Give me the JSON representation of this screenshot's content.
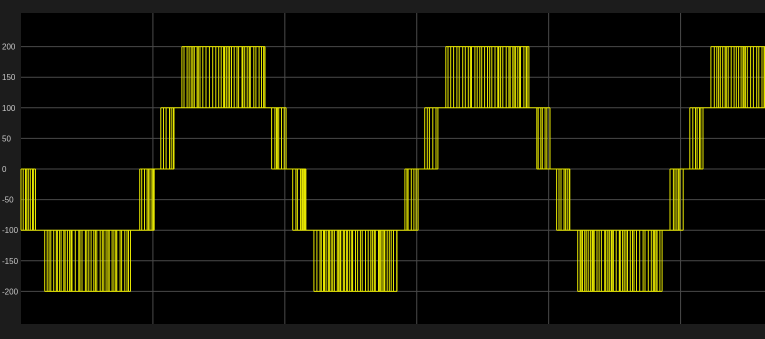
{
  "chart_data": {
    "type": "line",
    "title": "",
    "xlabel": "",
    "ylabel": "",
    "ylim": [
      -240,
      240
    ],
    "xlim": [
      0,
      5.64
    ],
    "grid": true,
    "yticks": [
      200,
      150,
      100,
      50,
      0,
      -50,
      -100,
      -150,
      -200
    ],
    "ytick_labels": [
      "200",
      "150",
      "100",
      "50",
      "0",
      "-50",
      "-100",
      "-150",
      "-200"
    ],
    "xtick_positions": [
      1,
      2,
      3,
      4,
      5
    ],
    "series": [
      {
        "color": "#e6e600",
        "description_of_shape": "PWM multilevel staircase voltage, levels 0, ±100, ±200",
        "segments": [
          {
            "x_start": 0.0,
            "x_end": 0.11,
            "low": -100,
            "high": 0
          },
          {
            "x_start": 0.11,
            "x_end": 0.18,
            "low": -100,
            "high": -100
          },
          {
            "x_start": 0.18,
            "x_end": 0.83,
            "low": -200,
            "high": -100
          },
          {
            "x_start": 0.83,
            "x_end": 0.9,
            "low": -100,
            "high": -100
          },
          {
            "x_start": 0.9,
            "x_end": 1.01,
            "low": -100,
            "high": 0
          },
          {
            "x_start": 1.01,
            "x_end": 1.06,
            "low": 0,
            "high": 0
          },
          {
            "x_start": 1.06,
            "x_end": 1.16,
            "low": 0,
            "high": 100
          },
          {
            "x_start": 1.16,
            "x_end": 1.22,
            "low": 100,
            "high": 100
          },
          {
            "x_start": 1.22,
            "x_end": 1.85,
            "low": 100,
            "high": 200
          },
          {
            "x_start": 1.85,
            "x_end": 1.9,
            "low": 100,
            "high": 100
          },
          {
            "x_start": 1.9,
            "x_end": 2.01,
            "low": 0,
            "high": 100
          },
          {
            "x_start": 2.01,
            "x_end": 2.06,
            "low": 0,
            "high": 0
          },
          {
            "x_start": 2.06,
            "x_end": 2.16,
            "low": -100,
            "high": 0
          },
          {
            "x_start": 2.16,
            "x_end": 2.22,
            "low": -100,
            "high": -100
          },
          {
            "x_start": 2.22,
            "x_end": 2.85,
            "low": -200,
            "high": -100
          },
          {
            "x_start": 2.85,
            "x_end": 2.91,
            "low": -100,
            "high": -100
          },
          {
            "x_start": 2.91,
            "x_end": 3.01,
            "low": -100,
            "high": 0
          },
          {
            "x_start": 3.01,
            "x_end": 3.06,
            "low": 0,
            "high": 0
          },
          {
            "x_start": 3.06,
            "x_end": 3.16,
            "low": 0,
            "high": 100
          },
          {
            "x_start": 3.16,
            "x_end": 3.22,
            "low": 100,
            "high": 100
          },
          {
            "x_start": 3.22,
            "x_end": 3.85,
            "low": 100,
            "high": 200
          },
          {
            "x_start": 3.85,
            "x_end": 3.91,
            "low": 100,
            "high": 100
          },
          {
            "x_start": 3.91,
            "x_end": 4.01,
            "low": 0,
            "high": 100
          },
          {
            "x_start": 4.01,
            "x_end": 4.06,
            "low": 0,
            "high": 0
          },
          {
            "x_start": 4.06,
            "x_end": 4.16,
            "low": -100,
            "high": 0
          },
          {
            "x_start": 4.16,
            "x_end": 4.22,
            "low": -100,
            "high": -100
          },
          {
            "x_start": 4.22,
            "x_end": 4.86,
            "low": -200,
            "high": -100
          },
          {
            "x_start": 4.86,
            "x_end": 4.92,
            "low": -100,
            "high": -100
          },
          {
            "x_start": 4.92,
            "x_end": 5.02,
            "low": -100,
            "high": 0
          },
          {
            "x_start": 5.02,
            "x_end": 5.07,
            "low": 0,
            "high": 0
          },
          {
            "x_start": 5.07,
            "x_end": 5.17,
            "low": 0,
            "high": 100
          },
          {
            "x_start": 5.17,
            "x_end": 5.23,
            "low": 100,
            "high": 100
          },
          {
            "x_start": 5.23,
            "x_end": 5.64,
            "low": 100,
            "high": 200
          }
        ]
      }
    ]
  },
  "colors": {
    "plot_background": "#000000",
    "frame_background": "#1c1c1c",
    "grid": "#4a4a4a",
    "trace": "#e6e600",
    "tick_text": "#c8c8c8"
  }
}
